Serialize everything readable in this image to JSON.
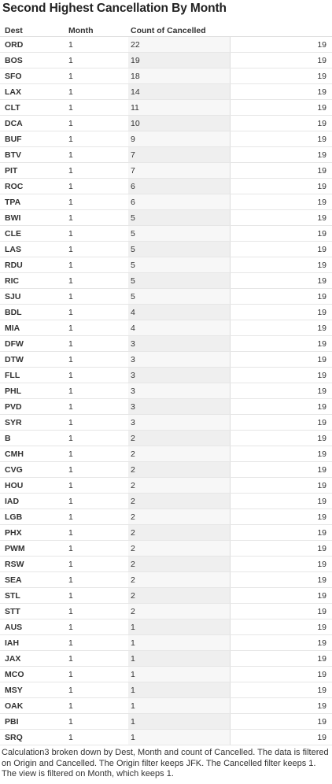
{
  "title": "Second Highest Cancellation By Month",
  "headers": {
    "dest": "Dest",
    "month": "Month",
    "count": "Count of Cancelled"
  },
  "rows": [
    {
      "dest": "ORD",
      "month": "1",
      "count": "22",
      "calc": "19"
    },
    {
      "dest": "BOS",
      "month": "1",
      "count": "19",
      "calc": "19"
    },
    {
      "dest": "SFO",
      "month": "1",
      "count": "18",
      "calc": "19"
    },
    {
      "dest": "LAX",
      "month": "1",
      "count": "14",
      "calc": "19"
    },
    {
      "dest": "CLT",
      "month": "1",
      "count": "11",
      "calc": "19"
    },
    {
      "dest": "DCA",
      "month": "1",
      "count": "10",
      "calc": "19"
    },
    {
      "dest": "BUF",
      "month": "1",
      "count": "9",
      "calc": "19"
    },
    {
      "dest": "BTV",
      "month": "1",
      "count": "7",
      "calc": "19"
    },
    {
      "dest": "PIT",
      "month": "1",
      "count": "7",
      "calc": "19"
    },
    {
      "dest": "ROC",
      "month": "1",
      "count": "6",
      "calc": "19"
    },
    {
      "dest": "TPA",
      "month": "1",
      "count": "6",
      "calc": "19"
    },
    {
      "dest": "BWI",
      "month": "1",
      "count": "5",
      "calc": "19"
    },
    {
      "dest": "CLE",
      "month": "1",
      "count": "5",
      "calc": "19"
    },
    {
      "dest": "LAS",
      "month": "1",
      "count": "5",
      "calc": "19"
    },
    {
      "dest": "RDU",
      "month": "1",
      "count": "5",
      "calc": "19"
    },
    {
      "dest": "RIC",
      "month": "1",
      "count": "5",
      "calc": "19"
    },
    {
      "dest": "SJU",
      "month": "1",
      "count": "5",
      "calc": "19"
    },
    {
      "dest": "BDL",
      "month": "1",
      "count": "4",
      "calc": "19"
    },
    {
      "dest": "MIA",
      "month": "1",
      "count": "4",
      "calc": "19"
    },
    {
      "dest": "DFW",
      "month": "1",
      "count": "3",
      "calc": "19"
    },
    {
      "dest": "DTW",
      "month": "1",
      "count": "3",
      "calc": "19"
    },
    {
      "dest": "FLL",
      "month": "1",
      "count": "3",
      "calc": "19"
    },
    {
      "dest": "PHL",
      "month": "1",
      "count": "3",
      "calc": "19"
    },
    {
      "dest": "PVD",
      "month": "1",
      "count": "3",
      "calc": "19"
    },
    {
      "dest": "SYR",
      "month": "1",
      "count": "3",
      "calc": "19"
    },
    {
      "dest": "B",
      "month": "1",
      "count": "2",
      "calc": "19"
    },
    {
      "dest": "CMH",
      "month": "1",
      "count": "2",
      "calc": "19"
    },
    {
      "dest": "CVG",
      "month": "1",
      "count": "2",
      "calc": "19"
    },
    {
      "dest": "HOU",
      "month": "1",
      "count": "2",
      "calc": "19"
    },
    {
      "dest": "IAD",
      "month": "1",
      "count": "2",
      "calc": "19"
    },
    {
      "dest": "LGB",
      "month": "1",
      "count": "2",
      "calc": "19"
    },
    {
      "dest": "PHX",
      "month": "1",
      "count": "2",
      "calc": "19"
    },
    {
      "dest": "PWM",
      "month": "1",
      "count": "2",
      "calc": "19"
    },
    {
      "dest": "RSW",
      "month": "1",
      "count": "2",
      "calc": "19"
    },
    {
      "dest": "SEA",
      "month": "1",
      "count": "2",
      "calc": "19"
    },
    {
      "dest": "STL",
      "month": "1",
      "count": "2",
      "calc": "19"
    },
    {
      "dest": "STT",
      "month": "1",
      "count": "2",
      "calc": "19"
    },
    {
      "dest": "AUS",
      "month": "1",
      "count": "1",
      "calc": "19"
    },
    {
      "dest": "IAH",
      "month": "1",
      "count": "1",
      "calc": "19"
    },
    {
      "dest": "JAX",
      "month": "1",
      "count": "1",
      "calc": "19"
    },
    {
      "dest": "MCO",
      "month": "1",
      "count": "1",
      "calc": "19"
    },
    {
      "dest": "MSY",
      "month": "1",
      "count": "1",
      "calc": "19"
    },
    {
      "dest": "OAK",
      "month": "1",
      "count": "1",
      "calc": "19"
    },
    {
      "dest": "PBI",
      "month": "1",
      "count": "1",
      "calc": "19"
    },
    {
      "dest": "SRQ",
      "month": "1",
      "count": "1",
      "calc": "19"
    }
  ],
  "footer": "Calculation3 broken down by Dest, Month and count of Cancelled.  The data is filtered on Origin and Cancelled. The Origin filter keeps JFK. The Cancelled filter keeps 1. The view is filtered on Month, which keeps 1."
}
